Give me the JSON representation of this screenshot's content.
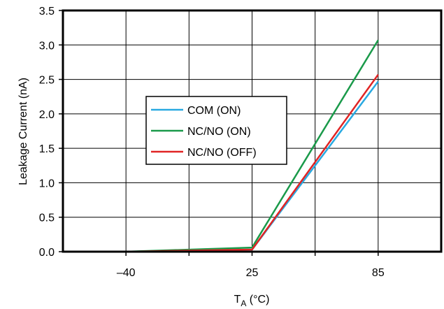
{
  "chart_data": {
    "type": "line",
    "xlabel": "T",
    "xlabel_sub": "A",
    "xlabel_unit": " (°C)",
    "ylabel": "Leakage Current (nA)",
    "categories": [
      "–40",
      "25",
      "85"
    ],
    "ylim": [
      0,
      3.5
    ],
    "yticks": [
      "0.0",
      "0.5",
      "1.0",
      "1.5",
      "2.0",
      "2.5",
      "3.0",
      "3.5"
    ],
    "grid": true,
    "legend_position": "center-left",
    "series": [
      {
        "name": "COM (ON)",
        "color": "#29a9e1",
        "values": [
          0.0,
          0.03,
          2.47
        ]
      },
      {
        "name": "NC/NO (ON)",
        "color": "#1a9a4a",
        "values": [
          0.0,
          0.06,
          3.07
        ]
      },
      {
        "name": "NC/NO (OFF)",
        "color": "#e02424",
        "values": [
          0.0,
          0.03,
          2.57
        ]
      }
    ]
  }
}
